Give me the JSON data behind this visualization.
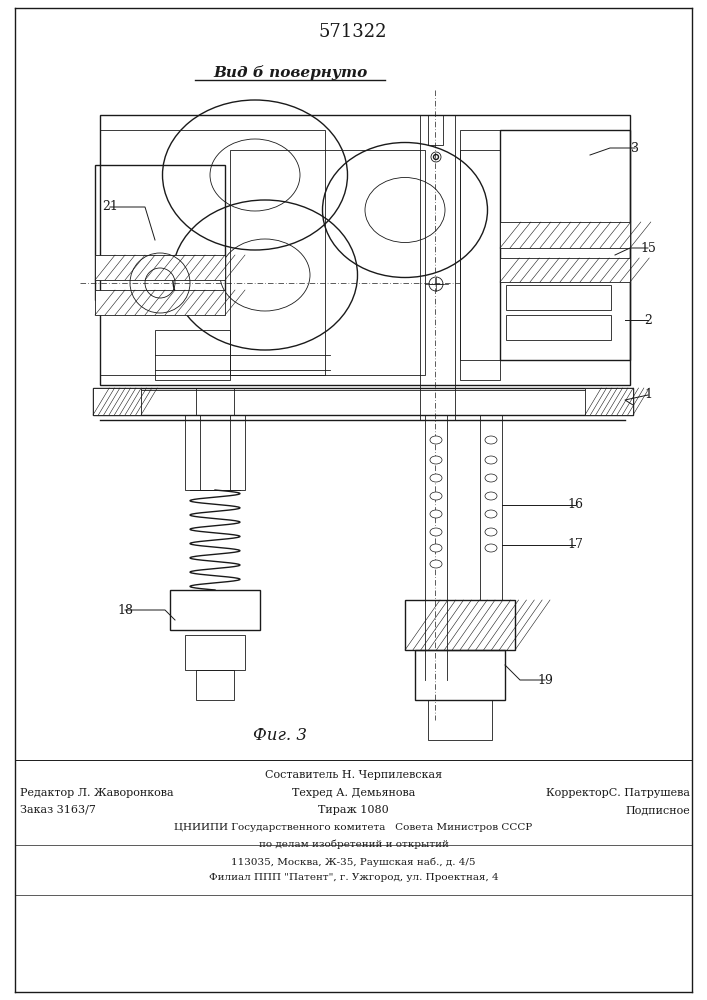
{
  "patent_number": "571322",
  "view_label": "Вид б повернуто",
  "fig_label": "Фиг. 3",
  "bg_color": "#ffffff",
  "line_color": "#1a1a1a",
  "footer_lines": [
    [
      "center",
      0.5,
      "Составитель Н. Черпилевская",
      8.5
    ],
    [
      "left",
      0.07,
      "Редактор Л. Жаворонкова",
      8
    ],
    [
      "center",
      0.5,
      "Техред А. Демьянова",
      8
    ],
    [
      "right",
      0.93,
      "КорректорС. Патрушева",
      8
    ],
    [
      "left",
      0.07,
      "Заказ 3163/7",
      8
    ],
    [
      "center",
      0.5,
      "Тираж 1080",
      8
    ],
    [
      "right",
      0.93,
      "Подписное",
      8
    ],
    [
      "center",
      0.5,
      "ЦНИИПИ Государственного комитета   Совета Министров СССР",
      8
    ],
    [
      "center",
      0.5,
      "по делам изобретений и открытий",
      8
    ],
    [
      "center",
      0.5,
      "113035, Москва, Ж-35, Раушская наб., д. 4/5",
      8
    ],
    [
      "center",
      0.5,
      "Филиал ППП \"Патент\", г. Ужгород, ул. Проектная, 4",
      8
    ]
  ],
  "figsize": [
    7.07,
    10.0
  ],
  "dpi": 100
}
